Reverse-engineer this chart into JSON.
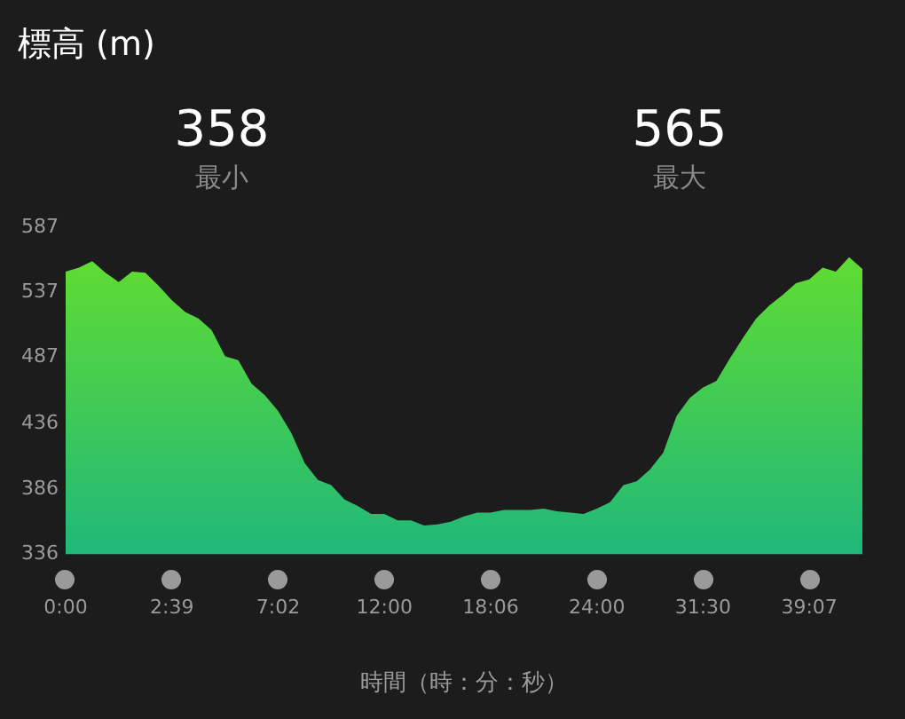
{
  "chart_data": {
    "type": "area",
    "title": "標高 (m)",
    "xlabel": "時間（時：分：秒）",
    "annotations": [
      "358",
      "最小",
      "565",
      "最大"
    ],
    "categories": [
      "0:00",
      null,
      null,
      null,
      null,
      null,
      null,
      null,
      "2:39",
      null,
      null,
      null,
      null,
      null,
      null,
      null,
      "7:02",
      null,
      null,
      null,
      null,
      null,
      null,
      null,
      "12:00",
      null,
      null,
      null,
      null,
      null,
      null,
      null,
      "18:06",
      null,
      null,
      null,
      null,
      null,
      null,
      null,
      "24:00",
      null,
      null,
      null,
      null,
      null,
      null,
      null,
      "31:30",
      null,
      null,
      null,
      null,
      null,
      null,
      null,
      "39:07",
      null,
      null,
      null,
      null
    ],
    "series": [
      {
        "color": "#66e02a",
        "values": [
          553,
          556,
          561,
          552,
          545,
          553,
          552,
          542,
          531,
          522,
          517,
          508,
          488,
          485,
          467,
          458,
          446,
          429,
          406,
          393,
          389,
          378,
          373,
          367,
          367,
          362,
          362,
          358,
          359,
          361,
          365,
          368,
          368,
          370,
          370,
          370,
          371,
          369,
          368,
          367,
          371,
          376,
          389,
          392,
          401,
          414,
          442,
          456,
          464,
          469,
          486,
          502,
          517,
          527,
          535,
          544,
          547,
          556,
          553,
          564,
          555
        ]
      }
    ],
    "ylim": [
      336,
      587
    ],
    "yticks": [
      336,
      386,
      436,
      487,
      537,
      587
    ],
    "grid": false,
    "legend": false
  }
}
